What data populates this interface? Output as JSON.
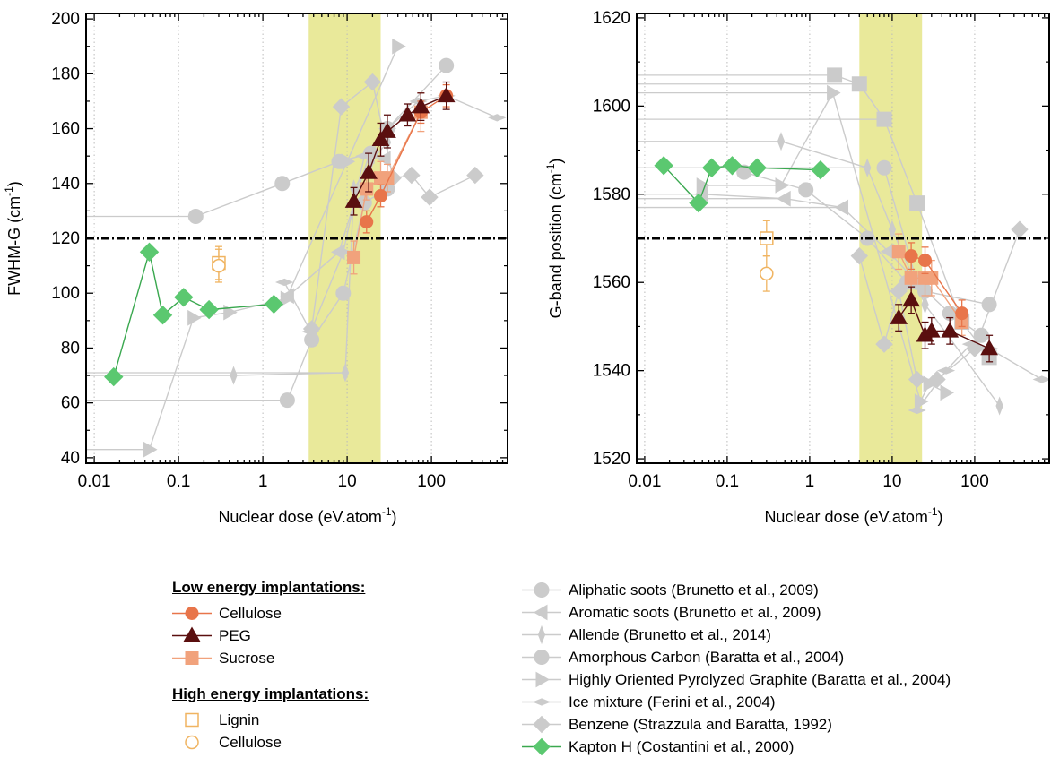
{
  "chart_data": [
    {
      "type": "scatter",
      "xlabel": "Nuclear dose (eV.atom",
      "xlabel_sup": "-1",
      "xlabel_close": ")",
      "ylabel": "FWHM-G (cm",
      "ylabel_sup": "-1",
      "ylabel_close": ")",
      "xscale": "log",
      "xlim": [
        0.008,
        800
      ],
      "ylim": [
        38,
        202
      ],
      "xticks": [
        {
          "v": 0.01,
          "label": "0.01"
        },
        {
          "v": 0.1,
          "label": "0.1"
        },
        {
          "v": 1,
          "label": "1"
        },
        {
          "v": 10,
          "label": "10"
        },
        {
          "v": 100,
          "label": "100"
        }
      ],
      "yticks": [
        {
          "v": 40,
          "label": "40"
        },
        {
          "v": 60,
          "label": "60"
        },
        {
          "v": 80,
          "label": "80"
        },
        {
          "v": 100,
          "label": "100"
        },
        {
          "v": 120,
          "label": "120"
        },
        {
          "v": 140,
          "label": "140"
        },
        {
          "v": 160,
          "label": "160"
        },
        {
          "v": 180,
          "label": "180"
        },
        {
          "v": 200,
          "label": "200"
        }
      ],
      "shaded_x": [
        3.5,
        25
      ],
      "hline": 120,
      "grid": "vertical dotted",
      "series": [
        {
          "key": "aliphatic",
          "arrows": [
            0.16,
            1.95
          ],
          "x": [
            0.16,
            1.7,
            8.0,
            19,
            30,
            150
          ],
          "y": [
            128,
            140,
            148,
            151,
            160,
            183
          ]
        },
        {
          "key": "aromatic",
          "arrows": [],
          "x": [
            2.0,
            8.0,
            18,
            28
          ],
          "y": [
            99,
            115,
            150,
            149
          ]
        },
        {
          "key": "allende",
          "arrows": [
            0.45,
            9.5
          ],
          "x": [
            0.45,
            9.5,
            12,
            19,
            30
          ],
          "y": [
            70,
            71,
            138,
            148,
            155
          ]
        },
        {
          "key": "amorphous",
          "arrows": [
            1.95
          ],
          "x": [
            1.95,
            3.8,
            9.0,
            16,
            30
          ],
          "y": [
            61,
            83,
            100,
            133,
            138
          ]
        },
        {
          "key": "hopg",
          "arrows": [
            0.045
          ],
          "x": [
            0.045,
            0.15,
            0.4,
            1.9,
            10,
            40
          ],
          "y": [
            43,
            91,
            93,
            98,
            148,
            190
          ]
        },
        {
          "key": "ice",
          "arrows": [],
          "x": [
            1.8,
            3.7,
            9.0,
            16,
            30,
            70,
            150,
            600
          ],
          "y": [
            104,
            86,
            115,
            150,
            160,
            170,
            172,
            164
          ]
        },
        {
          "key": "benzene",
          "arrows": [],
          "x": [
            3.8,
            8.5,
            20,
            35,
            58,
            95,
            330
          ],
          "y": [
            87,
            168,
            177,
            142,
            143,
            135,
            143
          ]
        },
        {
          "key": "kapton",
          "x": [
            0.017,
            0.045,
            0.065,
            0.115,
            0.23,
            1.35
          ],
          "y": [
            69.5,
            115,
            92,
            98.5,
            94,
            96
          ]
        },
        {
          "key": "cellulose",
          "x": [
            17,
            25,
            75,
            150
          ],
          "y": [
            126,
            135.5,
            166,
            172
          ],
          "err": [
            4,
            4,
            4,
            4
          ]
        },
        {
          "key": "peg",
          "x": [
            12,
            18,
            25,
            30,
            52,
            75,
            150
          ],
          "y": [
            133.5,
            144,
            156,
            159,
            165,
            168,
            172
          ],
          "err": [
            5,
            7,
            6,
            6,
            4,
            5,
            5
          ]
        },
        {
          "key": "sucrose",
          "x": [
            12,
            17,
            25,
            30,
            75
          ],
          "y": [
            113,
            138,
            142,
            142,
            166
          ],
          "err": [
            6,
            4,
            6,
            5,
            7
          ]
        },
        {
          "key": "lignin_he",
          "x": [
            0.3
          ],
          "y": [
            111
          ],
          "err": [
            6
          ]
        },
        {
          "key": "cellulose_he",
          "x": [
            0.3
          ],
          "y": [
            110
          ],
          "err": [
            6
          ]
        }
      ]
    },
    {
      "type": "scatter",
      "xlabel": "Nuclear dose (eV.atom",
      "xlabel_sup": "-1",
      "xlabel_close": ")",
      "ylabel": "G-band position (cm",
      "ylabel_sup": "-1",
      "ylabel_close": ")",
      "xscale": "log",
      "xlim": [
        0.008,
        800
      ],
      "ylim": [
        1519,
        1621
      ],
      "xticks": [
        {
          "v": 0.01,
          "label": "0.01"
        },
        {
          "v": 0.1,
          "label": "0.1"
        },
        {
          "v": 1,
          "label": "1"
        },
        {
          "v": 10,
          "label": "10"
        },
        {
          "v": 100,
          "label": "100"
        }
      ],
      "yticks": [
        {
          "v": 1520,
          "label": "1520"
        },
        {
          "v": 1540,
          "label": "1540"
        },
        {
          "v": 1560,
          "label": "1560"
        },
        {
          "v": 1580,
          "label": "1580"
        },
        {
          "v": 1600,
          "label": "1600"
        },
        {
          "v": 1620,
          "label": "1620"
        }
      ],
      "shaded_x": [
        4,
        23
      ],
      "hline": 1570,
      "grid": "vertical dotted",
      "series": [
        {
          "key": "aliphatic",
          "arrows": [],
          "x": [
            0.16,
            0.9,
            5.0,
            15,
            25,
            150
          ],
          "y": [
            1585,
            1581,
            1570,
            1560,
            1558,
            1555
          ]
        },
        {
          "key": "aromatic",
          "arrows": [
            0.05,
            0.5,
            2.5
          ],
          "x": [
            0.05,
            0.5,
            2.5,
            9.0,
            20
          ],
          "y": [
            1580,
            1579,
            1577,
            1567,
            1560
          ]
        },
        {
          "key": "allende",
          "arrows": [
            0.45,
            5.0
          ],
          "x": [
            0.45,
            5.0,
            10,
            25,
            200
          ],
          "y": [
            1592,
            1586,
            1572,
            1555,
            1532
          ]
        },
        {
          "key": "amorphous",
          "arrows": [],
          "x": [
            8.0,
            20,
            50,
            120
          ],
          "y": [
            1586,
            1560,
            1553,
            1548
          ]
        },
        {
          "key": "hopg",
          "arrows": [
            1.9
          ],
          "x": [
            0.05,
            0.45,
            1.9,
            22,
            28,
            45
          ],
          "y": [
            1582,
            1582,
            1603,
            1533,
            1537,
            1535
          ]
        },
        {
          "key": "ice",
          "arrows": [],
          "x": [
            20,
            45,
            90,
            150,
            650
          ],
          "y": [
            1531,
            1540,
            1546,
            1545,
            1538
          ]
        },
        {
          "key": "benzene",
          "arrows": [],
          "x": [
            4.0,
            8.0,
            12,
            20,
            35,
            100,
            350
          ],
          "y": [
            1566,
            1546,
            1558,
            1538,
            1538,
            1545,
            1572
          ]
        },
        {
          "key": "grey_square",
          "arrows": [
            2.0,
            4.0,
            8.0
          ],
          "x": [
            2.0,
            4.0,
            8.0,
            20,
            70,
            150
          ],
          "y": [
            1607,
            1605,
            1597,
            1578,
            1551,
            1543
          ]
        },
        {
          "key": "kapton",
          "x": [
            0.017,
            0.045,
            0.065,
            0.115,
            0.23,
            1.35
          ],
          "y": [
            1586.5,
            1578,
            1586,
            1586.5,
            1586,
            1585.5
          ]
        },
        {
          "key": "cellulose",
          "x": [
            17,
            25,
            70
          ],
          "y": [
            1566,
            1565,
            1553
          ],
          "err": [
            3,
            3,
            3
          ]
        },
        {
          "key": "peg",
          "x": [
            12,
            17,
            25,
            30,
            50,
            150
          ],
          "y": [
            1552,
            1556,
            1548,
            1549,
            1549,
            1545
          ],
          "err": [
            3,
            3,
            3,
            3,
            3,
            3
          ]
        },
        {
          "key": "sucrose",
          "x": [
            12,
            17,
            25,
            30,
            70
          ],
          "y": [
            1567,
            1561,
            1561,
            1561,
            1551
          ],
          "err": [
            4,
            4,
            4,
            4,
            3
          ]
        },
        {
          "key": "lignin_he",
          "x": [
            0.3
          ],
          "y": [
            1570
          ],
          "err": [
            4
          ]
        },
        {
          "key": "cellulose_he",
          "x": [
            0.3
          ],
          "y": [
            1562
          ],
          "err": [
            4
          ]
        }
      ]
    }
  ],
  "legend": {
    "low_title": "Low energy implantations:",
    "low_items": [
      {
        "key": "cellulose",
        "label": "Cellulose"
      },
      {
        "key": "peg",
        "label": "PEG"
      },
      {
        "key": "sucrose",
        "label": "Sucrose"
      }
    ],
    "high_title": "High energy implantations:",
    "high_items": [
      {
        "key": "lignin_he",
        "label": "Lignin"
      },
      {
        "key": "cellulose_he",
        "label": "Cellulose"
      }
    ],
    "lit_items": [
      {
        "key": "aliphatic",
        "label": "Aliphatic soots (Brunetto et al., 2009)"
      },
      {
        "key": "aromatic",
        "label": "Aromatic soots (Brunetto et al., 2009)"
      },
      {
        "key": "allende",
        "label": "Allende (Brunetto et al., 2014)"
      },
      {
        "key": "amorphous",
        "label": "Amorphous Carbon (Baratta et al., 2004)"
      },
      {
        "key": "hopg",
        "label": "Highly Oriented Pyrolyzed Graphite (Baratta et al., 2004)"
      },
      {
        "key": "ice",
        "label": "Ice mixture (Ferini et al., 2004)"
      },
      {
        "key": "benzene",
        "label": "Benzene (Strazzula and Baratta, 1992)"
      },
      {
        "key": "kapton",
        "label": "Kapton H (Costantini et al., 2000)"
      }
    ]
  },
  "colors": {
    "grey": "#cbcbcb",
    "kapton": "#5bc870",
    "kapton_line": "#3aa84f",
    "cellulose": "#e8754a",
    "peg": "#5a0f0f",
    "sucrose": "#f1a27c",
    "highenergy": "#f0b461",
    "shade": "#e9e99a",
    "hline": "#000000"
  }
}
